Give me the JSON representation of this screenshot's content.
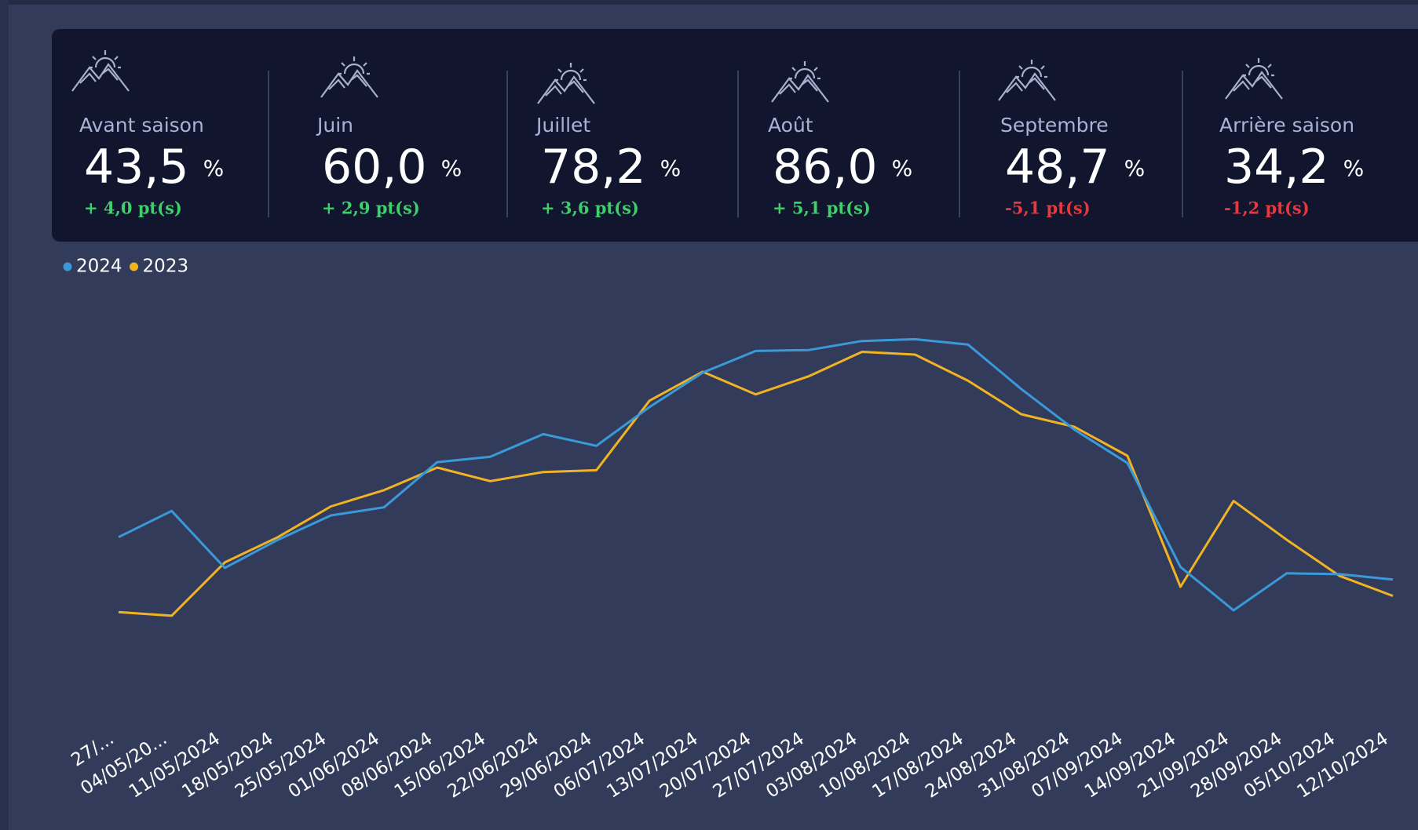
{
  "kpis": [
    {
      "label": "Avant saison",
      "value": "43,5",
      "unit": "%",
      "delta": "+ 4,0 pt(s)"
    },
    {
      "label": "Juin",
      "value": "60,0",
      "unit": "%",
      "delta": "+ 2,9 pt(s)"
    },
    {
      "label": "Juillet",
      "value": "78,2",
      "unit": "%",
      "delta": "+ 3,6 pt(s)"
    },
    {
      "label": "Août",
      "value": "86,0",
      "unit": "%",
      "delta": "+ 5,1 pt(s)"
    },
    {
      "label": "Septembre",
      "value": "48,7",
      "unit": "%",
      "delta": "-5,1 pt(s)"
    },
    {
      "label": "Arrière saison",
      "value": "34,2",
      "unit": "%",
      "delta": "-1,2 pt(s)"
    }
  ],
  "chart_data": {
    "type": "line",
    "categories": [
      "27/...",
      "04/05/20...",
      "11/05/2024",
      "18/05/2024",
      "25/05/2024",
      "01/06/2024",
      "08/06/2024",
      "15/06/2024",
      "22/06/2024",
      "29/06/2024",
      "06/07/2024",
      "13/07/2024",
      "20/07/2024",
      "27/07/2024",
      "03/08/2024",
      "10/08/2024",
      "17/08/2024",
      "24/08/2024",
      "31/08/2024",
      "07/09/2024",
      "14/09/2024",
      "21/09/2024",
      "28/09/2024",
      "05/10/2024",
      "12/10/2024"
    ],
    "series": [
      {
        "name": "2024",
        "color": "#3a9ad9",
        "values": [
          41.2,
          47,
          34.4,
          40.6,
          46,
          47.8,
          57.8,
          59,
          64,
          61.4,
          70,
          77.6,
          82.4,
          82.6,
          84.6,
          85,
          83.8,
          74,
          65,
          57.6,
          34.6,
          25,
          33.2,
          33,
          31.8
        ]
      },
      {
        "name": "2023",
        "color": "#f0b323",
        "values": [
          24.6,
          23.8,
          35.6,
          41.2,
          48,
          51.6,
          56.6,
          53.6,
          55.6,
          56,
          71.4,
          77.8,
          72.8,
          76.8,
          82.2,
          81.6,
          75.8,
          68.4,
          65.6,
          59.2,
          30.2,
          49.2,
          40.6,
          32.6,
          28.2
        ]
      }
    ],
    "ylim": [
      0,
      100
    ]
  }
}
